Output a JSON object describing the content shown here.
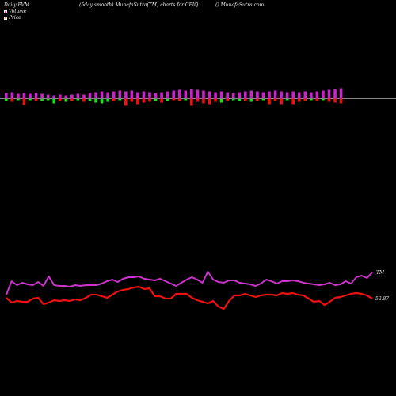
{
  "header": {
    "left": "Daily PVM",
    "center": "(5day smooth) MunafaSutra(TM) charts for GPIQ",
    "right": "() MunafaSutra.com"
  },
  "legend": [
    {
      "label": "Volume",
      "color": "#ff3399"
    },
    {
      "label": "Price",
      "color": "#ff9966"
    }
  ],
  "chart_data": [
    {
      "type": "bar",
      "title": "",
      "colors": {
        "up": "#cc22cc",
        "down_red": "#ee1111",
        "down_green": "#22dd22",
        "baseline": "#888888"
      },
      "bars": [
        {
          "up": 7,
          "down": 3,
          "c": "g"
        },
        {
          "up": 8,
          "down": 4,
          "c": "r"
        },
        {
          "up": 6,
          "down": 2,
          "c": "g"
        },
        {
          "up": 7,
          "down": 8,
          "c": "r"
        },
        {
          "up": 6,
          "down": 2,
          "c": "g"
        },
        {
          "up": 7,
          "down": 3,
          "c": "r"
        },
        {
          "up": 6,
          "down": 3,
          "c": "g"
        },
        {
          "up": 5,
          "down": 2,
          "c": "g"
        },
        {
          "up": 4,
          "down": 6,
          "c": "g"
        },
        {
          "up": 5,
          "down": 3,
          "c": "r"
        },
        {
          "up": 4,
          "down": 4,
          "c": "g"
        },
        {
          "up": 5,
          "down": 3,
          "c": "r"
        },
        {
          "up": 6,
          "down": 2,
          "c": "g"
        },
        {
          "up": 5,
          "down": 4,
          "c": "r"
        },
        {
          "up": 7,
          "down": 3,
          "c": "g"
        },
        {
          "up": 8,
          "down": 5,
          "c": "g"
        },
        {
          "up": 9,
          "down": 6,
          "c": "g"
        },
        {
          "up": 8,
          "down": 4,
          "c": "g"
        },
        {
          "up": 9,
          "down": 3,
          "c": "r"
        },
        {
          "up": 10,
          "down": 2,
          "c": "g"
        },
        {
          "up": 9,
          "down": 9,
          "c": "r"
        },
        {
          "up": 10,
          "down": 4,
          "c": "r"
        },
        {
          "up": 8,
          "down": 7,
          "c": "r"
        },
        {
          "up": 9,
          "down": 5,
          "c": "r"
        },
        {
          "up": 8,
          "down": 4,
          "c": "r"
        },
        {
          "up": 7,
          "down": 3,
          "c": "g"
        },
        {
          "up": 8,
          "down": 5,
          "c": "r"
        },
        {
          "up": 9,
          "down": 3,
          "c": "g"
        },
        {
          "up": 10,
          "down": 2,
          "c": "r"
        },
        {
          "up": 11,
          "down": 3,
          "c": "r"
        },
        {
          "up": 10,
          "down": 2,
          "c": "g"
        },
        {
          "up": 12,
          "down": 9,
          "c": "r"
        },
        {
          "up": 11,
          "down": 4,
          "c": "r"
        },
        {
          "up": 10,
          "down": 6,
          "c": "r"
        },
        {
          "up": 9,
          "down": 7,
          "c": "r"
        },
        {
          "up": 8,
          "down": 4,
          "c": "r"
        },
        {
          "up": 9,
          "down": 5,
          "c": "g"
        },
        {
          "up": 8,
          "down": 3,
          "c": "r"
        },
        {
          "up": 7,
          "down": 2,
          "c": "g"
        },
        {
          "up": 8,
          "down": 3,
          "c": "g"
        },
        {
          "up": 9,
          "down": 3,
          "c": "r"
        },
        {
          "up": 10,
          "down": 4,
          "c": "g"
        },
        {
          "up": 9,
          "down": 3,
          "c": "r"
        },
        {
          "up": 8,
          "down": 2,
          "c": "g"
        },
        {
          "up": 9,
          "down": 7,
          "c": "r"
        },
        {
          "up": 10,
          "down": 3,
          "c": "r"
        },
        {
          "up": 9,
          "down": 7,
          "c": "r"
        },
        {
          "up": 8,
          "down": 2,
          "c": "g"
        },
        {
          "up": 9,
          "down": 7,
          "c": "r"
        },
        {
          "up": 8,
          "down": 4,
          "c": "r"
        },
        {
          "up": 9,
          "down": 3,
          "c": "r"
        },
        {
          "up": 8,
          "down": 2,
          "c": "g"
        },
        {
          "up": 9,
          "down": 3,
          "c": "r"
        },
        {
          "up": 10,
          "down": 2,
          "c": "g"
        },
        {
          "up": 11,
          "down": 4,
          "c": "r"
        },
        {
          "up": 12,
          "down": 5,
          "c": "r"
        },
        {
          "up": 13,
          "down": 6,
          "c": "r"
        }
      ]
    },
    {
      "type": "line",
      "title": "",
      "series": [
        {
          "name": "TM",
          "color": "#cc33cc",
          "values": [
            52.93,
            53.1,
            53.05,
            53.08,
            53.06,
            53.05,
            53.09,
            53.04,
            53.16,
            53.05,
            53.04,
            53.04,
            53.03,
            53.05,
            53.04,
            53.05,
            53.05,
            53.05,
            53.07,
            53.1,
            53.12,
            53.09,
            53.13,
            53.15,
            53.15,
            53.16,
            53.13,
            53.12,
            53.11,
            53.13,
            53.1,
            53.07,
            53.04,
            53.08,
            53.12,
            53.15,
            53.12,
            53.08,
            53.22,
            53.12,
            53.09,
            53.08,
            53.11,
            53.11,
            53.08,
            53.07,
            53.06,
            53.04,
            53.07,
            53.12,
            53.1,
            53.07,
            53.1,
            53.1,
            53.11,
            53.1,
            53.08,
            53.07,
            53.06,
            53.05,
            53.06,
            53.08,
            53.05,
            53.06,
            53.1,
            53.07,
            53.15,
            53.17,
            53.14,
            53.21
          ]
        },
        {
          "name": "",
          "color": "#ee1111",
          "values": [
            52.89,
            52.83,
            52.85,
            52.84,
            52.84,
            52.88,
            52.89,
            52.81,
            52.83,
            52.86,
            52.85,
            52.86,
            52.85,
            52.87,
            52.86,
            52.89,
            52.93,
            52.93,
            52.91,
            52.89,
            52.93,
            52.97,
            52.99,
            53.0,
            53.02,
            53.03,
            53.0,
            53.01,
            52.91,
            52.91,
            52.88,
            52.88,
            52.94,
            52.94,
            52.94,
            52.89,
            52.86,
            52.84,
            52.82,
            52.85,
            52.78,
            52.75,
            52.85,
            52.92,
            52.92,
            52.94,
            52.92,
            52.9,
            52.92,
            52.93,
            52.93,
            52.92,
            52.95,
            52.94,
            52.95,
            52.93,
            52.92,
            52.88,
            52.84,
            52.85,
            52.8,
            52.84,
            52.89,
            52.9,
            52.92,
            52.94,
            52.95,
            52.94,
            52.92,
            52.88
          ]
        }
      ],
      "annotations": [
        "TM",
        "52.87"
      ]
    }
  ]
}
